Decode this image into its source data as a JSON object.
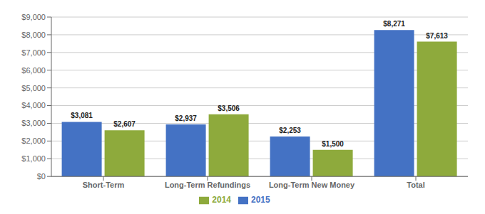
{
  "chart_data": {
    "type": "bar",
    "categories": [
      "Short-Term",
      "Long-Term Refundings",
      "Long-Term New Money",
      "Total"
    ],
    "series": [
      {
        "name": "2015",
        "color": "#4472C4",
        "values": [
          3081,
          2937,
          2253,
          8271
        ],
        "value_labels": [
          "$3,081",
          "$2,937",
          "$2,253",
          "$8,271"
        ]
      },
      {
        "name": "2014",
        "color": "#8EAA3C",
        "values": [
          2607,
          3506,
          1500,
          7613
        ],
        "value_labels": [
          "$2,607",
          "$3,506",
          "$1,500",
          "$7,613"
        ]
      }
    ],
    "ylim": [
      0,
      9000
    ],
    "yticks": [
      {
        "value": 0,
        "label": "$0"
      },
      {
        "value": 1000,
        "label": "$1,000"
      },
      {
        "value": 2000,
        "label": "$2,000"
      },
      {
        "value": 3000,
        "label": "$3,000"
      },
      {
        "value": 4000,
        "label": "$4,000"
      },
      {
        "value": 5000,
        "label": "$5,000"
      },
      {
        "value": 6000,
        "label": "$6,000"
      },
      {
        "value": 7000,
        "label": "$7,000"
      },
      {
        "value": 8000,
        "label": "$8,000"
      },
      {
        "value": 9000,
        "label": "$9,000"
      }
    ],
    "grid": true,
    "data_labels": true,
    "legend": "bottom"
  }
}
